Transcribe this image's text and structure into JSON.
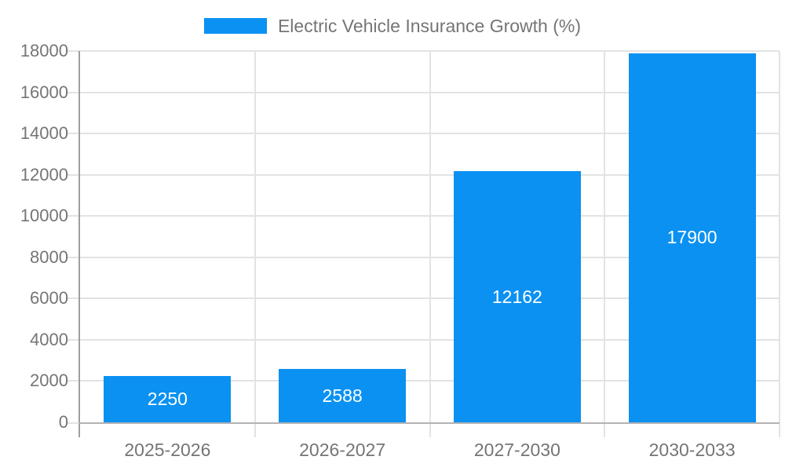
{
  "chart_data": {
    "type": "bar",
    "title": "Electric Vehicle Insurance Growth (%)",
    "series_name": "Electric Vehicle Insurance Growth (%)",
    "categories": [
      "2025-2026",
      "2026-2027",
      "2027-2030",
      "2030-2033"
    ],
    "values": [
      2250,
      2588,
      12162,
      17900
    ],
    "value_labels": [
      "2250",
      "2588",
      "12162",
      "17900"
    ],
    "xlabel": "",
    "ylabel": "",
    "ylim": [
      0,
      18000
    ],
    "ytick_step": 2000,
    "ytick_labels": [
      "0",
      "2000",
      "4000",
      "6000",
      "8000",
      "10000",
      "12000",
      "14000",
      "16000",
      "18000"
    ],
    "grid": "on",
    "legend_position": "top",
    "bar_color": "#0a91f2",
    "value_label_color": "#ffffff",
    "axis_text_color": "#757575",
    "gridline_color": "#e3e3e3"
  }
}
